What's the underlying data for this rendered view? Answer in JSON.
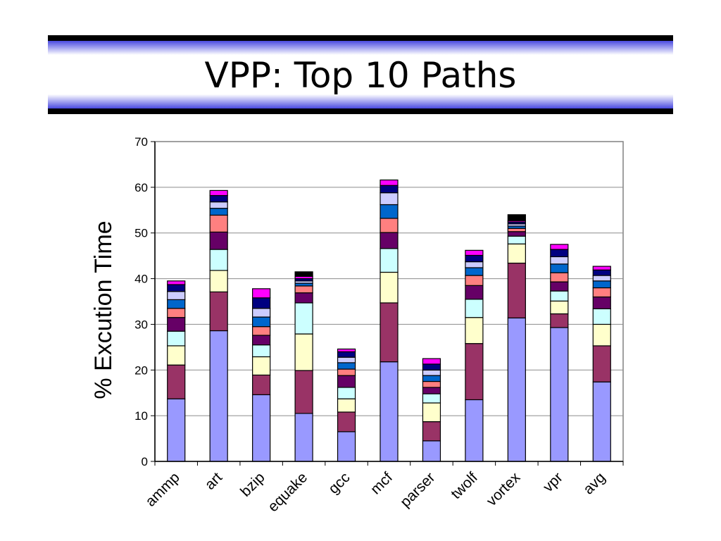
{
  "slide": {
    "title": "VPP: Top 10 Paths"
  },
  "chart_data": {
    "type": "bar",
    "stacked": true,
    "title": "",
    "xlabel": "",
    "ylabel": "% Excution Time",
    "ylim": [
      0,
      70
    ],
    "yticks": [
      0,
      10,
      20,
      30,
      40,
      50,
      60,
      70
    ],
    "grid": true,
    "legend": "none",
    "categories": [
      "ammp",
      "art",
      "bzip",
      "equake",
      "gcc",
      "mcf",
      "parser",
      "twolf",
      "vortex",
      "vpr",
      "avg"
    ],
    "series": [
      {
        "color": "#9999ff",
        "values": [
          13.7,
          28.6,
          14.6,
          10.5,
          6.5,
          21.8,
          4.5,
          13.5,
          31.4,
          29.3,
          17.4
        ]
      },
      {
        "color": "#993366",
        "values": [
          7.4,
          8.5,
          4.3,
          9.4,
          4.3,
          12.9,
          4.2,
          12.3,
          12.0,
          3.0,
          7.9
        ]
      },
      {
        "color": "#ffffcc",
        "values": [
          4.2,
          4.7,
          4.0,
          8.0,
          2.9,
          6.7,
          4.1,
          5.7,
          4.2,
          2.8,
          4.7
        ]
      },
      {
        "color": "#ccffff",
        "values": [
          3.2,
          4.6,
          2.6,
          6.8,
          2.5,
          5.2,
          2.0,
          4.0,
          1.7,
          2.2,
          3.4
        ]
      },
      {
        "color": "#660066",
        "values": [
          3.0,
          3.8,
          2.1,
          2.2,
          2.6,
          3.5,
          1.4,
          3.0,
          1.0,
          2.0,
          2.6
        ]
      },
      {
        "color": "#ff8080",
        "values": [
          2.0,
          3.7,
          1.9,
          1.5,
          1.4,
          3.1,
          1.3,
          2.2,
          0.7,
          2.0,
          2.0
        ]
      },
      {
        "color": "#0066cc",
        "values": [
          1.9,
          1.5,
          2.1,
          0.6,
          1.4,
          3.0,
          1.3,
          1.7,
          0.5,
          1.9,
          1.5
        ]
      },
      {
        "color": "#ccccff",
        "values": [
          1.8,
          1.4,
          1.9,
          0.5,
          1.2,
          2.6,
          1.2,
          1.3,
          0.5,
          1.6,
          1.2
        ]
      },
      {
        "color": "#000080",
        "values": [
          1.5,
          1.4,
          2.3,
          0.5,
          1.2,
          1.6,
          1.3,
          1.4,
          0.4,
          1.6,
          1.2
        ]
      },
      {
        "color": "#ff00ff",
        "values": [
          0.8,
          1.1,
          2.0,
          0.5,
          0.6,
          1.2,
          1.2,
          1.1,
          0.3,
          1.1,
          0.8
        ]
      },
      {
        "color": "#000000",
        "values": [
          0.0,
          0.0,
          0.0,
          1.0,
          0.0,
          0.0,
          0.0,
          0.0,
          1.3,
          0.0,
          0.0
        ]
      }
    ]
  }
}
